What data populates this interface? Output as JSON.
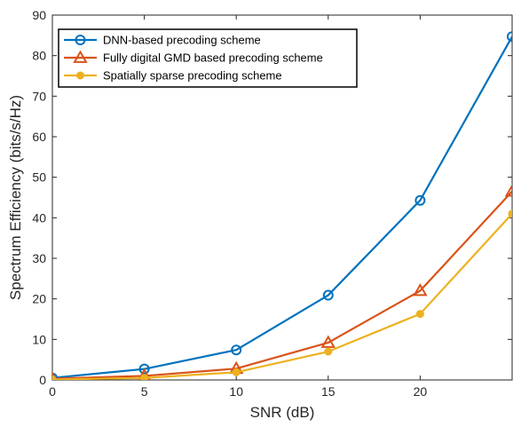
{
  "chart_data": {
    "type": "line",
    "title": "",
    "xlabel": "SNR (dB)",
    "ylabel": "Spectrum Efficiency (bits/s/Hz)",
    "xlim": [
      0,
      25
    ],
    "ylim": [
      0,
      90
    ],
    "xticks": [
      0,
      5,
      10,
      15,
      20
    ],
    "yticks": [
      0,
      10,
      20,
      30,
      40,
      50,
      60,
      70,
      80,
      90
    ],
    "grid": false,
    "legend_position": "top-left",
    "x": [
      0,
      5,
      10,
      15,
      20,
      25
    ],
    "series": [
      {
        "name": "DNN-based precoding scheme",
        "color": "#0072BD",
        "marker": "circle-open",
        "values": [
          0.5,
          2.7,
          7.4,
          20.9,
          44.3,
          84.7
        ]
      },
      {
        "name": "Fully digital GMD based precoding scheme",
        "color": "#D95319",
        "marker": "triangle-open",
        "values": [
          0.3,
          1.0,
          2.8,
          9.2,
          22.0,
          46.5
        ]
      },
      {
        "name": "Spatially sparse precoding scheme",
        "color": "#EDB120",
        "marker": "dot-filled",
        "values": [
          0.1,
          0.5,
          1.9,
          7.0,
          16.3,
          41.0
        ]
      }
    ]
  }
}
